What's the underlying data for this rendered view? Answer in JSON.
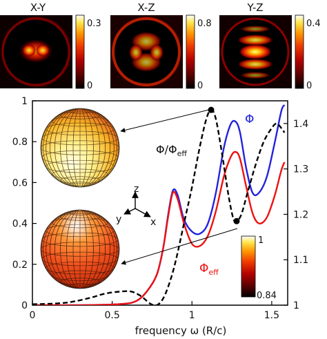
{
  "colors": {
    "phi": "#2222dd",
    "phi_eff": "#ee1111",
    "ratio": "#000000",
    "axes": "#000000",
    "colormap": [
      "#000000",
      "#5a0000",
      "#b40000",
      "#f03c00",
      "#ff9600",
      "#ffe650",
      "#ffffff"
    ]
  },
  "panels": [
    {
      "title": "X-Y",
      "cbar_max": "0.3",
      "cbar_min": "0"
    },
    {
      "title": "X-Z",
      "cbar_max": "0.8",
      "cbar_min": "0"
    },
    {
      "title": "Y-Z",
      "cbar_max": "0.4",
      "cbar_min": "0"
    }
  ],
  "axes_labels": {
    "x": "frequency ω (R/c)",
    "z": "z",
    "x_dir": "x",
    "y_dir": "y"
  },
  "annotations": {
    "phi": "Φ",
    "phi_eff": "Φ",
    "phi_eff_sub": "eff",
    "ratio": "Φ/Φ",
    "ratio_sub": "eff"
  },
  "sphere_colorbar": {
    "max": "1",
    "min": "0.84"
  },
  "chart_data": {
    "type": "line",
    "xlabel": "frequency ω (R/c)",
    "xlim": [
      0,
      1.6
    ],
    "ylim_left": [
      0,
      1
    ],
    "ylim_right": [
      1,
      1.45
    ],
    "x_ticks": [
      "0",
      "0.5",
      "1",
      "1.5"
    ],
    "y_ticks_left": [
      "0",
      "0.2",
      "0.4",
      "0.6",
      "0.8",
      "1"
    ],
    "y_ticks_right": [
      "1",
      "1.1",
      "1.2",
      "1.3",
      "1.4"
    ],
    "grid": false,
    "series": [
      {
        "name": "Φ",
        "axis": "left",
        "style": "solid",
        "points": [
          [
            0,
            0
          ],
          [
            0.3,
            0
          ],
          [
            0.55,
            0.005
          ],
          [
            0.65,
            0.02
          ],
          [
            0.72,
            0.07
          ],
          [
            0.78,
            0.15
          ],
          [
            0.82,
            0.28
          ],
          [
            0.85,
            0.44
          ],
          [
            0.88,
            0.56
          ],
          [
            0.91,
            0.54
          ],
          [
            0.95,
            0.42
          ],
          [
            1.0,
            0.36
          ],
          [
            1.05,
            0.35
          ],
          [
            1.1,
            0.4
          ],
          [
            1.15,
            0.55
          ],
          [
            1.2,
            0.77
          ],
          [
            1.24,
            0.88
          ],
          [
            1.27,
            0.9
          ],
          [
            1.3,
            0.85
          ],
          [
            1.34,
            0.67
          ],
          [
            1.38,
            0.55
          ],
          [
            1.42,
            0.55
          ],
          [
            1.47,
            0.63
          ],
          [
            1.52,
            0.8
          ],
          [
            1.56,
            0.95
          ],
          [
            1.58,
            0.98
          ]
        ]
      },
      {
        "name": "Φ",
        "name_sub": "eff",
        "axis": "left",
        "style": "solid",
        "points": [
          [
            0,
            0
          ],
          [
            0.3,
            0
          ],
          [
            0.55,
            0.005
          ],
          [
            0.65,
            0.02
          ],
          [
            0.72,
            0.07
          ],
          [
            0.78,
            0.15
          ],
          [
            0.82,
            0.28
          ],
          [
            0.85,
            0.43
          ],
          [
            0.88,
            0.55
          ],
          [
            0.91,
            0.52
          ],
          [
            0.95,
            0.4
          ],
          [
            1.0,
            0.3
          ],
          [
            1.05,
            0.29
          ],
          [
            1.1,
            0.34
          ],
          [
            1.15,
            0.46
          ],
          [
            1.2,
            0.63
          ],
          [
            1.24,
            0.72
          ],
          [
            1.27,
            0.75
          ],
          [
            1.3,
            0.72
          ],
          [
            1.34,
            0.58
          ],
          [
            1.38,
            0.45
          ],
          [
            1.42,
            0.4
          ],
          [
            1.47,
            0.43
          ],
          [
            1.52,
            0.54
          ],
          [
            1.56,
            0.66
          ],
          [
            1.58,
            0.7
          ]
        ]
      },
      {
        "name": "Φ/Φ",
        "name_sub": "eff",
        "axis": "right",
        "style": "dashed",
        "points": [
          [
            0,
            1.002
          ],
          [
            0.2,
            1.005
          ],
          [
            0.35,
            1.015
          ],
          [
            0.45,
            1.025
          ],
          [
            0.55,
            1.03
          ],
          [
            0.62,
            1.03
          ],
          [
            0.68,
            1.02
          ],
          [
            0.74,
            1.003
          ],
          [
            0.78,
            1.0
          ],
          [
            0.82,
            1.015
          ],
          [
            0.86,
            1.05
          ],
          [
            0.9,
            1.1
          ],
          [
            0.95,
            1.18
          ],
          [
            1.0,
            1.26
          ],
          [
            1.05,
            1.35
          ],
          [
            1.09,
            1.41
          ],
          [
            1.12,
            1.43
          ],
          [
            1.15,
            1.41
          ],
          [
            1.19,
            1.33
          ],
          [
            1.23,
            1.24
          ],
          [
            1.26,
            1.19
          ],
          [
            1.28,
            1.185
          ],
          [
            1.31,
            1.2
          ],
          [
            1.35,
            1.25
          ],
          [
            1.4,
            1.31
          ],
          [
            1.45,
            1.36
          ],
          [
            1.5,
            1.39
          ],
          [
            1.53,
            1.4
          ],
          [
            1.56,
            1.39
          ],
          [
            1.58,
            1.38
          ]
        ]
      }
    ],
    "markers": [
      {
        "x": 1.12,
        "y": 1.43,
        "axis": "right"
      },
      {
        "x": 1.28,
        "y": 1.185,
        "axis": "right"
      }
    ]
  }
}
